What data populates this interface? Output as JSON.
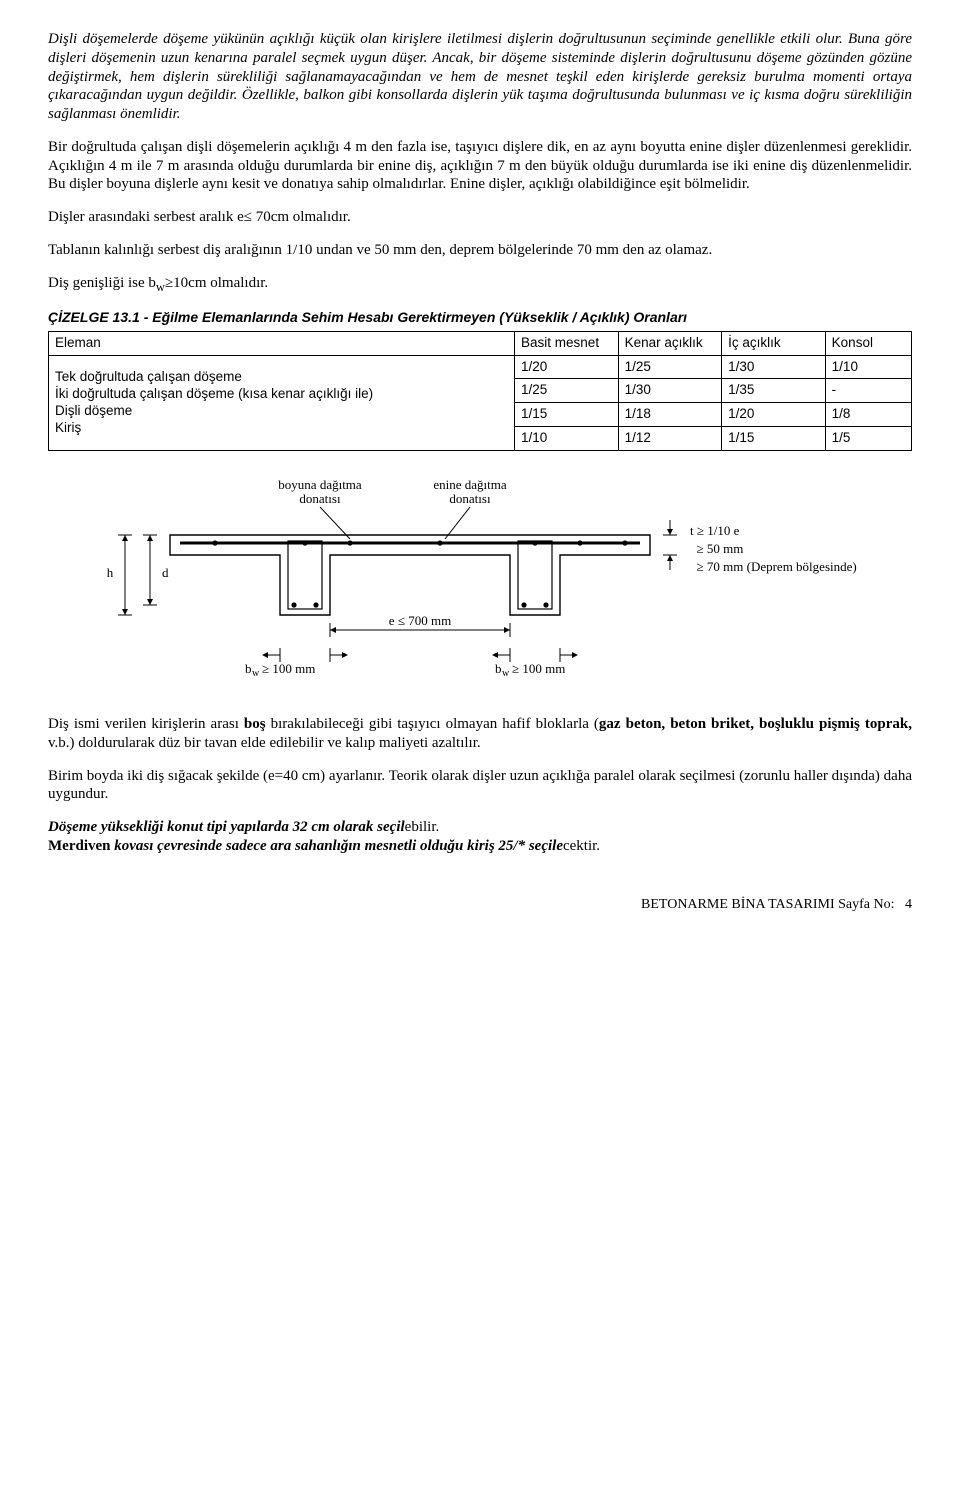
{
  "paragraphs": {
    "p1a": "Dişli döşemelerde döşeme yükünün açıklığı küçük olan kirişlere iletilmesi dişlerin doğrultusunun seçiminde genellikle etkili olur. Buna göre dişleri döşemenin uzun kenarına paralel seçmek uygun düşer. Ancak, bir döşeme sisteminde dişlerin doğrultusunu döşeme gözünden gözüne değiştirmek, hem dişlerin sürekliliği sağlanamayacağından ve hem de mesnet teşkil eden kirişlerde gereksiz burulma momenti ortaya çıkaracağından uygun değildir. Özellikle, balkon gibi konsollarda dişlerin yük taşıma doğrultusunda bulunması ve iç kısma doğru sürekliliğin sağlanması önemlidir.",
    "p2": "Bir doğrultuda çalışan dişli döşemelerin açıklığı 4 m den fazla ise, taşıyıcı dişlere dik, en az aynı boyutta enine dişler düzenlenmesi gereklidir. Açıklığın 4 m ile 7 m arasında olduğu durumlarda bir enine diş, açıklığın 7 m den büyük olduğu durumlarda ise iki enine diş düzenlenmelidir. Bu dişler boyuna dişlerle aynı kesit ve donatıya sahip olmalıdırlar. Enine dişler, açıklığı olabildiğince eşit bölmelidir.",
    "p3": "Dişler arasındaki serbest aralık e≤ 70cm olmalıdır.",
    "p4": "Tablanın kalınlığı serbest diş aralığının 1/10 undan ve 50 mm den, deprem bölgelerinde 70 mm den az olamaz.",
    "p5_a": "Diş genişliği ise b",
    "p5_b": "≥10cm olmalıdır.",
    "p6_a": "Diş ismi verilen kirişlerin arası ",
    "p6_b": "boş",
    "p6_c": " bırakılabileceği gibi taşıyıcı olmayan hafif bloklarla (",
    "p6_d": "gaz beton, beton briket, boşluklu pişmiş toprak,",
    "p6_e": " v.b.) doldurularak düz bir tavan elde edilebilir ve kalıp maliyeti azaltılır.",
    "p7": "Birim boyda iki diş sığacak şekilde (e=40 cm) ayarlanır.  Teorik olarak dişler uzun açıklığa paralel olarak seçilmesi (zorunlu haller dışında) daha uygundur.",
    "p8a": "Döşeme yüksekliği konut tipi yapılarda 32 cm olarak seçil",
    "p8b": "ebilir.",
    "p9a": "Merdiven ",
    "p9b": "kovası çevresinde sadece ara sahanlığın mesnetli olduğu kiriş 25/* seçile",
    "p9c": "cektir."
  },
  "table": {
    "title": "ÇİZELGE 13.1 - Eğilme Elemanlarında Sehim Hesabı Gerektirmeyen (Yükseklik / Açıklık) Oranları",
    "headers": [
      "Eleman",
      "Basit mesnet",
      "Kenar açıklık",
      "İç açıklık",
      "Konsol"
    ],
    "rows": [
      [
        "Tek doğrultuda çalışan döşeme",
        "1/20",
        "1/25",
        "1/30",
        "1/10"
      ],
      [
        "İki doğrultuda çalışan döşeme (kısa kenar açıklığı ile)",
        "1/25",
        "1/30",
        "1/35",
        "-"
      ],
      [
        "Dişli döşeme",
        "1/15",
        "1/18",
        "1/20",
        "1/8"
      ],
      [
        "Kiriş",
        "1/10",
        "1/12",
        "1/15",
        "1/5"
      ]
    ]
  },
  "diagram": {
    "labels": {
      "boyuna": "boyuna dağıtma donatısı",
      "enine": "enine dağıtma donatısı",
      "h": "h",
      "d": "d",
      "e_dim": "e ≤  700 mm",
      "bw1": "bw ≥ 100 mm",
      "bw2": "bw ≥ 100 mm",
      "t1": "t ≥ 1/10 e",
      "t2": "≥ 50 mm",
      "t3": "≥ 70 mm (Deprem bölgesinde)"
    },
    "colors": {
      "stroke": "#000000",
      "fill": "#ffffff",
      "text": "#000000"
    },
    "line_width": 1.2,
    "font_size_label": 13,
    "font_size_dim": 13
  },
  "footer": {
    "text_a": "BETONARME BİNA TASARIMI Sayfa No:",
    "page": "4"
  }
}
